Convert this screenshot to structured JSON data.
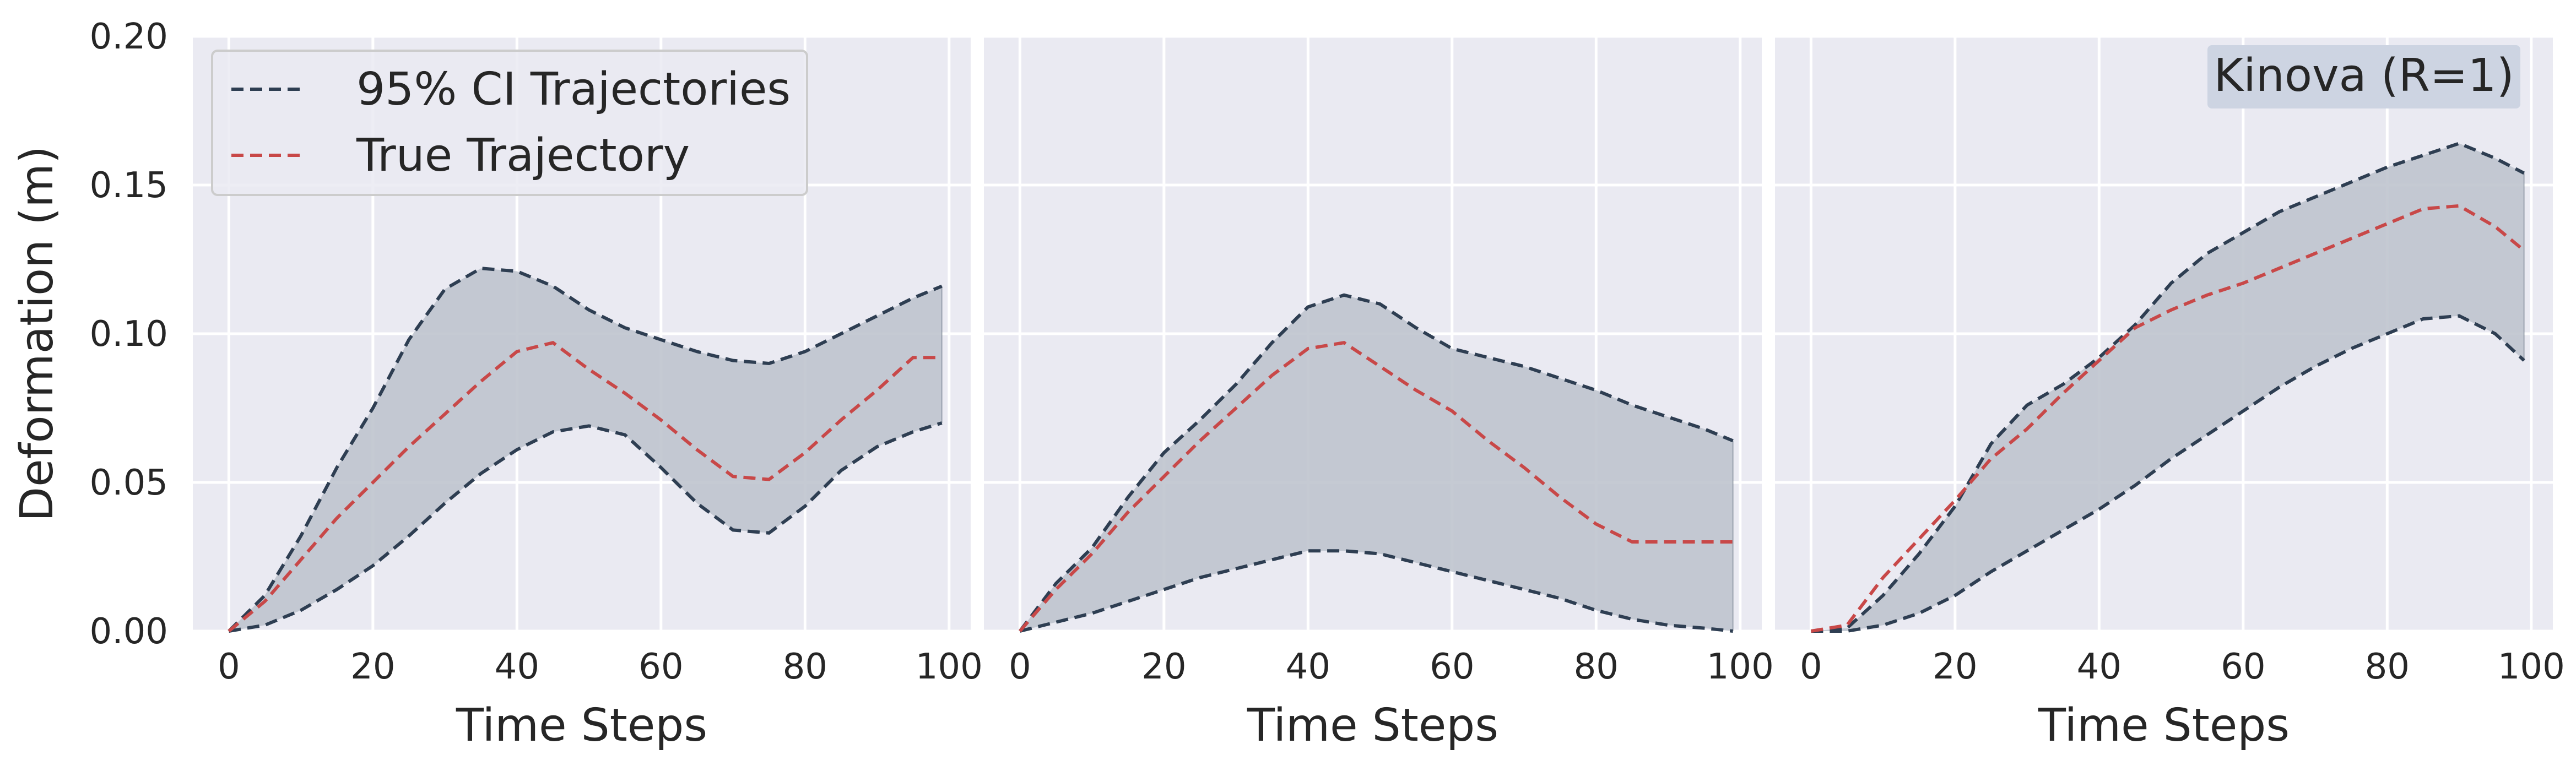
{
  "chart_data": [
    {
      "type": "line",
      "xlabel": "Time Steps",
      "ylabel": "Deformation (m)",
      "xlim": [
        -5,
        103
      ],
      "ylim": [
        0,
        0.2
      ],
      "xticks": [
        "0",
        "20",
        "40",
        "60",
        "80",
        "100"
      ],
      "yticks": [
        "0.00",
        "0.05",
        "0.10",
        "0.15",
        "0.20"
      ],
      "grid": true,
      "legend": {
        "position": "top-left",
        "entries": [
          "95% CI Trajectories",
          "True Trajectory"
        ]
      },
      "band": {
        "name": "95% CI Trajectories",
        "x": [
          0,
          5,
          10,
          15,
          20,
          25,
          30,
          35,
          40,
          45,
          50,
          55,
          60,
          65,
          70,
          75,
          80,
          85,
          90,
          95,
          99
        ],
        "upper": [
          0.0,
          0.012,
          0.032,
          0.055,
          0.075,
          0.098,
          0.115,
          0.122,
          0.121,
          0.116,
          0.108,
          0.102,
          0.098,
          0.094,
          0.091,
          0.09,
          0.094,
          0.1,
          0.106,
          0.112,
          0.116
        ],
        "lower": [
          0.0,
          0.002,
          0.007,
          0.014,
          0.022,
          0.032,
          0.043,
          0.053,
          0.061,
          0.067,
          0.069,
          0.066,
          0.055,
          0.043,
          0.034,
          0.033,
          0.042,
          0.054,
          0.062,
          0.067,
          0.07
        ]
      },
      "series": [
        {
          "name": "True Trajectory",
          "x": [
            0,
            5,
            10,
            15,
            20,
            25,
            30,
            35,
            40,
            45,
            50,
            55,
            60,
            65,
            70,
            75,
            80,
            85,
            90,
            95,
            99
          ],
          "values": [
            0.0,
            0.01,
            0.024,
            0.038,
            0.05,
            0.062,
            0.073,
            0.084,
            0.094,
            0.097,
            0.088,
            0.08,
            0.071,
            0.061,
            0.052,
            0.051,
            0.06,
            0.071,
            0.081,
            0.092,
            0.092
          ]
        }
      ]
    },
    {
      "type": "line",
      "xlabel": "Time Steps",
      "ylabel": "",
      "xlim": [
        -5,
        103
      ],
      "ylim": [
        0,
        0.2
      ],
      "xticks": [
        "0",
        "20",
        "40",
        "60",
        "80",
        "100"
      ],
      "grid": true,
      "band": {
        "name": "95% CI Trajectories",
        "x": [
          0,
          5,
          10,
          15,
          20,
          25,
          30,
          35,
          40,
          45,
          50,
          55,
          60,
          65,
          70,
          75,
          80,
          85,
          90,
          95,
          99
        ],
        "upper": [
          0.0,
          0.016,
          0.028,
          0.045,
          0.06,
          0.071,
          0.083,
          0.097,
          0.109,
          0.113,
          0.11,
          0.102,
          0.095,
          0.092,
          0.089,
          0.085,
          0.081,
          0.076,
          0.072,
          0.068,
          0.064
        ],
        "lower": [
          0.0,
          0.003,
          0.006,
          0.01,
          0.014,
          0.018,
          0.021,
          0.024,
          0.027,
          0.027,
          0.026,
          0.023,
          0.02,
          0.017,
          0.014,
          0.011,
          0.007,
          0.004,
          0.002,
          0.001,
          0.0
        ]
      },
      "series": [
        {
          "name": "True Trajectory",
          "x": [
            0,
            5,
            10,
            15,
            20,
            25,
            30,
            35,
            40,
            45,
            50,
            55,
            60,
            65,
            70,
            75,
            80,
            85,
            90,
            95,
            99
          ],
          "values": [
            0.0,
            0.014,
            0.026,
            0.04,
            0.052,
            0.064,
            0.075,
            0.086,
            0.095,
            0.097,
            0.089,
            0.081,
            0.074,
            0.064,
            0.055,
            0.045,
            0.036,
            0.03,
            0.03,
            0.03,
            0.03
          ]
        }
      ]
    },
    {
      "type": "line",
      "xlabel": "Time Steps",
      "ylabel": "",
      "xlim": [
        -5,
        103
      ],
      "ylim": [
        0,
        0.2
      ],
      "xticks": [
        "0",
        "20",
        "40",
        "60",
        "80",
        "100"
      ],
      "grid": true,
      "annotation": "Kinova (R=1)",
      "band": {
        "name": "95% CI Trajectories",
        "x": [
          0,
          5,
          10,
          15,
          20,
          25,
          30,
          35,
          40,
          45,
          50,
          55,
          60,
          65,
          70,
          75,
          80,
          85,
          90,
          95,
          99
        ],
        "upper": [
          0.0,
          0.001,
          0.012,
          0.026,
          0.042,
          0.063,
          0.076,
          0.083,
          0.092,
          0.103,
          0.117,
          0.127,
          0.134,
          0.141,
          0.146,
          0.151,
          0.156,
          0.16,
          0.164,
          0.159,
          0.154
        ],
        "lower": [
          0.0,
          0.0,
          0.002,
          0.006,
          0.012,
          0.02,
          0.027,
          0.034,
          0.041,
          0.049,
          0.058,
          0.066,
          0.074,
          0.082,
          0.089,
          0.095,
          0.1,
          0.105,
          0.106,
          0.1,
          0.091
        ]
      },
      "series": [
        {
          "name": "True Trajectory",
          "x": [
            0,
            5,
            10,
            15,
            20,
            25,
            30,
            35,
            40,
            45,
            50,
            55,
            60,
            65,
            70,
            75,
            80,
            85,
            90,
            95,
            99
          ],
          "values": [
            0.0,
            0.002,
            0.018,
            0.031,
            0.044,
            0.058,
            0.068,
            0.08,
            0.091,
            0.102,
            0.108,
            0.113,
            0.117,
            0.122,
            0.127,
            0.132,
            0.137,
            0.142,
            0.143,
            0.136,
            0.128
          ]
        }
      ]
    }
  ],
  "colors": {
    "panel_bg": "#eaeaf2",
    "grid": "#ffffff",
    "band_fill": "#bfc4ce",
    "ci_line": "#2e3e52",
    "true_line": "#c84848",
    "text": "#262626",
    "annotation_bg": "#cdd4e2"
  }
}
